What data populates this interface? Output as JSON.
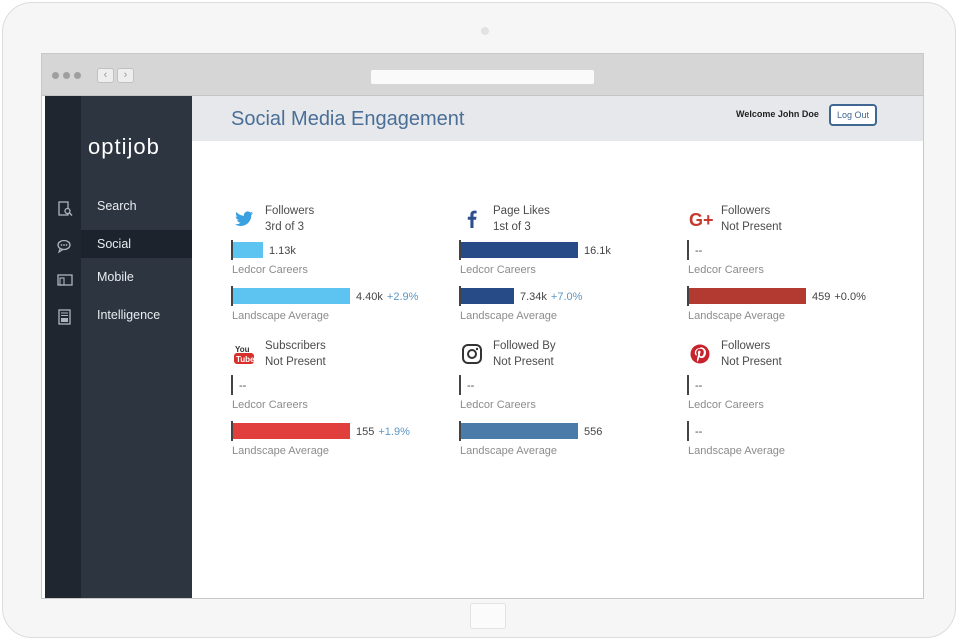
{
  "app": {
    "logo": "optijob",
    "page_title": "Social Media Engagement",
    "welcome": "Welcome John Doe",
    "logout_label": "Log Out"
  },
  "browser": {
    "back": "‹",
    "forward": "›"
  },
  "sidebar": {
    "items": [
      {
        "label": "Search",
        "icon": "document-search-icon"
      },
      {
        "label": "Social",
        "icon": "chat-bubbles-icon",
        "active": true
      },
      {
        "label": "Mobile",
        "icon": "mobile-device-icon"
      },
      {
        "label": "Intelligence",
        "icon": "report-icon"
      }
    ]
  },
  "metrics": [
    {
      "platform": "Twitter",
      "icon": "twitter-icon",
      "color": "#5dc3f0",
      "label": "Followers",
      "sub": "3rd of 3",
      "company_label": "Ledcor Careers",
      "company_value": "1.13k",
      "company_fraction": 0.19,
      "avg_label": "Landscape Average",
      "avg_value": "4.40k",
      "avg_change": "+2.9%",
      "avg_fraction": 0.73
    },
    {
      "platform": "Facebook",
      "icon": "facebook-icon",
      "color": "#264b87",
      "label": "Page Likes",
      "sub": "1st of 3",
      "company_label": "Ledcor Careers",
      "company_value": "16.1k",
      "company_fraction": 0.73,
      "avg_label": "Landscape Average",
      "avg_value": "7.34k",
      "avg_change": "+7.0%",
      "avg_fraction": 0.33
    },
    {
      "platform": "Google+",
      "icon": "google-plus-icon",
      "color": "#b23a31",
      "label": "Followers",
      "sub": "Not Present",
      "company_label": "Ledcor Careers",
      "company_value": "--",
      "company_fraction": 0,
      "avg_label": "Landscape Average",
      "avg_value": "459",
      "avg_change": "+0.0%",
      "avg_fraction": 0.73
    },
    {
      "platform": "YouTube",
      "icon": "youtube-icon",
      "color": "#e13e3e",
      "label": "Subscribers",
      "sub": "Not Present",
      "company_label": "Ledcor Careers",
      "company_value": "--",
      "company_fraction": 0,
      "avg_label": "Landscape Average",
      "avg_value": "155",
      "avg_change": "+1.9%",
      "avg_fraction": 0.73
    },
    {
      "platform": "Instagram",
      "icon": "instagram-icon",
      "color": "#4b7ba8",
      "label": "Followed By",
      "sub": "Not Present",
      "company_label": "Ledcor Careers",
      "company_value": "--",
      "company_fraction": 0,
      "avg_label": "Landscape Average",
      "avg_value": "556",
      "avg_change": "",
      "avg_fraction": 0.73
    },
    {
      "platform": "Pinterest",
      "icon": "pinterest-icon",
      "color": "#c8232c",
      "label": "Followers",
      "sub": "Not Present",
      "company_label": "Ledcor Careers",
      "company_value": "--",
      "company_fraction": 0,
      "avg_label": "Landscape Average",
      "avg_value": "--",
      "avg_change": "",
      "avg_fraction": 0
    }
  ]
}
